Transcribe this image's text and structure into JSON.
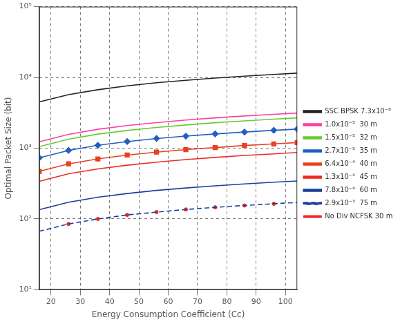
{
  "chart_data": {
    "type": "line",
    "x_label": "Energy Consumption Coefficient (Cc)",
    "y_label": "Optimal Packet Size (bit)",
    "x": [
      16,
      26,
      36,
      46,
      56,
      66,
      76,
      86,
      96,
      104
    ],
    "xlim": [
      16,
      104
    ],
    "xticks": [
      20,
      30,
      40,
      50,
      60,
      70,
      80,
      90,
      100
    ],
    "ylim": [
      10,
      100000
    ],
    "yticks": [
      {
        "value": 10,
        "label": "10¹"
      },
      {
        "value": 100,
        "label": "10²"
      },
      {
        "value": 1000,
        "label": "10³"
      },
      {
        "value": 10000,
        "label": "10⁴"
      },
      {
        "value": 100000,
        "label": "10⁵"
      }
    ],
    "log": "y",
    "grid": true,
    "legend": "right",
    "series": [
      {
        "name": "SSC BPSK 7.3x10⁻⁶",
        "color": "#222222",
        "line_style": "solid",
        "values": [
          4500,
          5700,
          6700,
          7600,
          8400,
          9100,
          9800,
          10400,
          11000,
          11500
        ]
      },
      {
        "name": "1.0x10⁻⁵  30 m",
        "color": "#ff3fa0",
        "line_style": "solid",
        "values": [
          1230,
          1570,
          1850,
          2090,
          2300,
          2500,
          2680,
          2850,
          3010,
          3140
        ]
      },
      {
        "name": "1.5x10⁻⁵  32 m",
        "color": "#66cc33",
        "line_style": "solid",
        "values": [
          1050,
          1340,
          1580,
          1780,
          1960,
          2130,
          2290,
          2430,
          2570,
          2680
        ]
      },
      {
        "name": "2.7x10⁻⁵  35 m",
        "color": "#1f5fbf",
        "line_style": "solid",
        "marker": "diamond",
        "values": [
          730,
          930,
          1100,
          1240,
          1370,
          1480,
          1590,
          1690,
          1790,
          1860
        ]
      },
      {
        "name": "6.4x10⁻⁴  40 m",
        "color": "#e8401f",
        "line_style": "solid",
        "marker": "square",
        "values": [
          470,
          600,
          705,
          800,
          880,
          955,
          1020,
          1090,
          1150,
          1200
        ]
      },
      {
        "name": "1.3x10⁻⁴  45 m",
        "color": "#ee2a24",
        "line_style": "solid",
        "values": [
          340,
          435,
          510,
          575,
          635,
          690,
          740,
          790,
          830,
          870
        ]
      },
      {
        "name": "7.8x10⁻⁴  60 m",
        "color": "#1a3fa0",
        "line_style": "solid",
        "values": [
          135,
          172,
          203,
          229,
          253,
          274,
          294,
          313,
          331,
          344
        ]
      },
      {
        "name": "2.9x10⁻³  75 m",
        "color": "#1a3fa0",
        "line_style": "dashed",
        "values": [
          67,
          85,
          100,
          114,
          125,
          136,
          146,
          155,
          164,
          171
        ]
      },
      {
        "name": "No Div NCFSK 30 m",
        "color": "#ee2a24",
        "line_style": "none",
        "marker": "circle",
        "values": [
          null,
          85,
          100,
          114,
          125,
          136,
          146,
          155,
          164,
          null
        ]
      }
    ]
  }
}
